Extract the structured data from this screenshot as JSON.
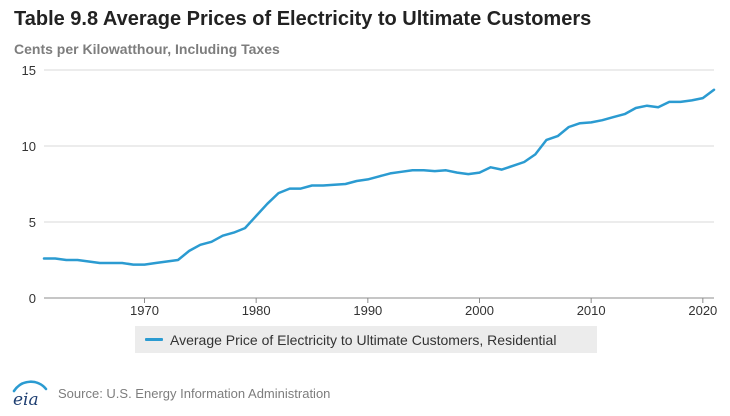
{
  "header": {
    "title": "Table 9.8 Average Prices of Electricity to Ultimate Customers",
    "subtitle": "Cents per Kilowatthour, Including Taxes"
  },
  "chart_data": {
    "type": "line",
    "title": "Table 9.8 Average Prices of Electricity to Ultimate Customers",
    "subtitle": "Cents per Kilowatthour, Including Taxes",
    "xlabel": "",
    "ylabel": "",
    "xlim": [
      1961,
      2021
    ],
    "ylim": [
      0,
      15
    ],
    "xticks": [
      1970,
      1980,
      1990,
      2000,
      2010,
      2020
    ],
    "yticks": [
      0,
      5,
      10,
      15
    ],
    "grid": "horizontal",
    "legend_position": "bottom",
    "series": [
      {
        "name": "Average Price of Electricity to Ultimate Customers, Residential",
        "color": "#2b9bd1",
        "x": [
          1961,
          1962,
          1963,
          1964,
          1965,
          1966,
          1967,
          1968,
          1969,
          1970,
          1971,
          1972,
          1973,
          1974,
          1975,
          1976,
          1977,
          1978,
          1979,
          1980,
          1981,
          1982,
          1983,
          1984,
          1985,
          1986,
          1987,
          1988,
          1989,
          1990,
          1991,
          1992,
          1993,
          1994,
          1995,
          1996,
          1997,
          1998,
          1999,
          2000,
          2001,
          2002,
          2003,
          2004,
          2005,
          2006,
          2007,
          2008,
          2009,
          2010,
          2011,
          2012,
          2013,
          2014,
          2015,
          2016,
          2017,
          2018,
          2019,
          2020,
          2021
        ],
        "y": [
          2.6,
          2.6,
          2.5,
          2.5,
          2.4,
          2.3,
          2.3,
          2.3,
          2.2,
          2.2,
          2.3,
          2.4,
          2.5,
          3.1,
          3.5,
          3.7,
          4.1,
          4.3,
          4.6,
          5.4,
          6.2,
          6.9,
          7.2,
          7.2,
          7.4,
          7.4,
          7.45,
          7.5,
          7.7,
          7.8,
          8.0,
          8.2,
          8.3,
          8.4,
          8.4,
          8.35,
          8.4,
          8.25,
          8.15,
          8.25,
          8.6,
          8.45,
          8.7,
          8.95,
          9.45,
          10.4,
          10.65,
          11.25,
          11.5,
          11.55,
          11.7,
          11.9,
          12.1,
          12.5,
          12.65,
          12.55,
          12.9,
          12.9,
          13.0,
          13.15,
          13.7
        ]
      }
    ]
  },
  "legend": {
    "label": "Average Price of Electricity to Ultimate Customers, Residential",
    "color": "#2b9bd1"
  },
  "footer": {
    "logo_text": "eia",
    "source": "Source: U.S. Energy Information Administration"
  }
}
